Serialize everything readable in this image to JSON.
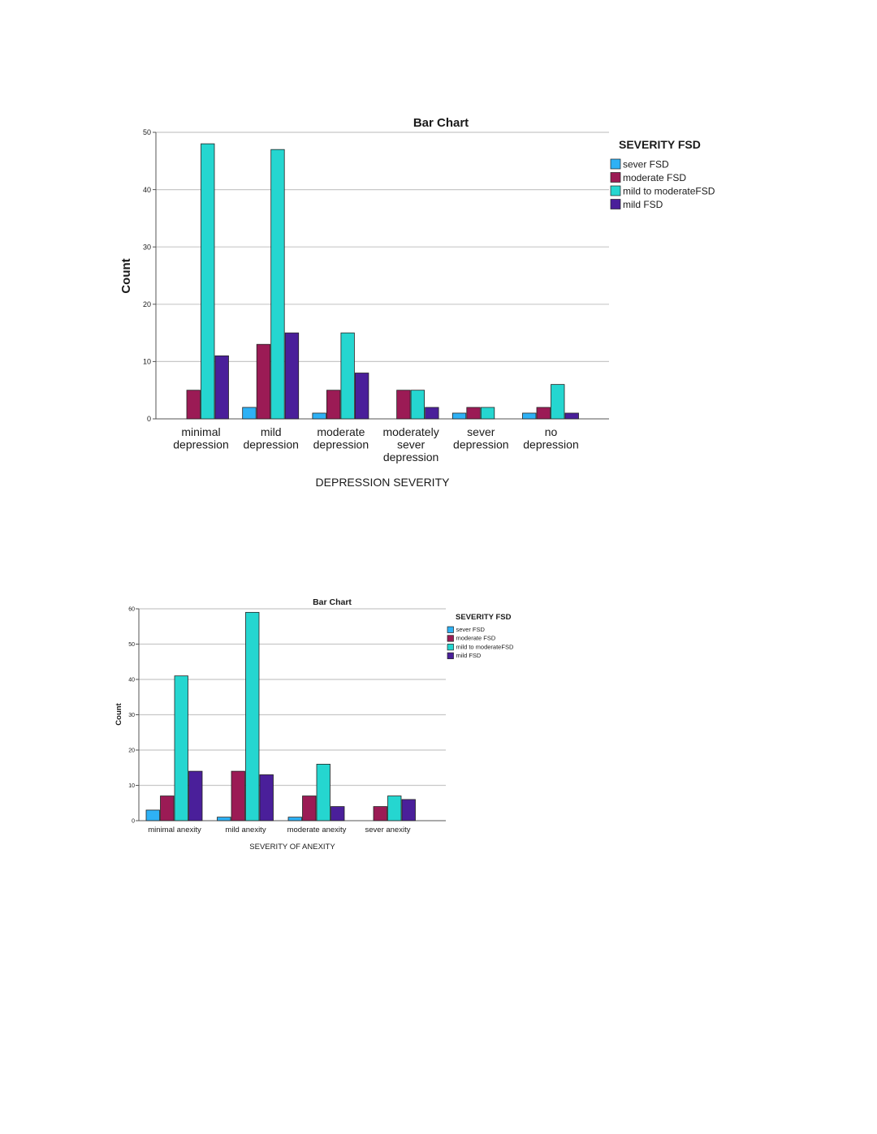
{
  "chart_data": [
    {
      "type": "bar",
      "title": "Bar Chart",
      "xlabel": "DEPRESSION SEVERITY",
      "ylabel": "Count",
      "ylim": [
        0,
        50
      ],
      "yticks": [
        0,
        10,
        20,
        30,
        40,
        50
      ],
      "grid": true,
      "legend_title": "SEVERITY FSD",
      "legend_position": "right",
      "categories": [
        [
          "minimal",
          "depression"
        ],
        [
          "mild",
          "depression"
        ],
        [
          "moderate",
          "depression"
        ],
        [
          "moderately",
          "sever",
          "depression"
        ],
        [
          "sever",
          "depression"
        ],
        [
          "no",
          "depression"
        ]
      ],
      "series": [
        {
          "name": "sever FSD",
          "color": "#2eb1f5",
          "values": [
            0,
            2,
            1,
            0,
            1,
            1
          ]
        },
        {
          "name": "moderate FSD",
          "color": "#9b1b55",
          "values": [
            5,
            13,
            5,
            5,
            2,
            2
          ]
        },
        {
          "name": "mild to moderateFSD",
          "color": "#25d6d0",
          "values": [
            48,
            47,
            15,
            5,
            2,
            6
          ]
        },
        {
          "name": "mild FSD",
          "color": "#4a1f9a",
          "values": [
            11,
            15,
            8,
            2,
            0,
            1
          ]
        }
      ]
    },
    {
      "type": "bar",
      "title": "Bar Chart",
      "xlabel": "SEVERITY OF ANEXITY",
      "ylabel": "Count",
      "ylim": [
        0,
        60
      ],
      "yticks": [
        0,
        10,
        20,
        30,
        40,
        50,
        60
      ],
      "grid": true,
      "legend_title": "SEVERITY FSD",
      "legend_position": "right",
      "categories": [
        [
          "minimal anexity"
        ],
        [
          "mild anexity"
        ],
        [
          "moderate anexity"
        ],
        [
          "sever anexity"
        ]
      ],
      "series": [
        {
          "name": "sever FSD",
          "color": "#2eb1f5",
          "values": [
            3,
            1,
            1,
            0
          ]
        },
        {
          "name": "moderate FSD",
          "color": "#9b1b55",
          "values": [
            7,
            14,
            7,
            4
          ]
        },
        {
          "name": "mild to moderateFSD",
          "color": "#25d6d0",
          "values": [
            41,
            59,
            16,
            7
          ]
        },
        {
          "name": "mild FSD",
          "color": "#4a1f9a",
          "values": [
            14,
            13,
            4,
            6
          ]
        }
      ]
    }
  ]
}
